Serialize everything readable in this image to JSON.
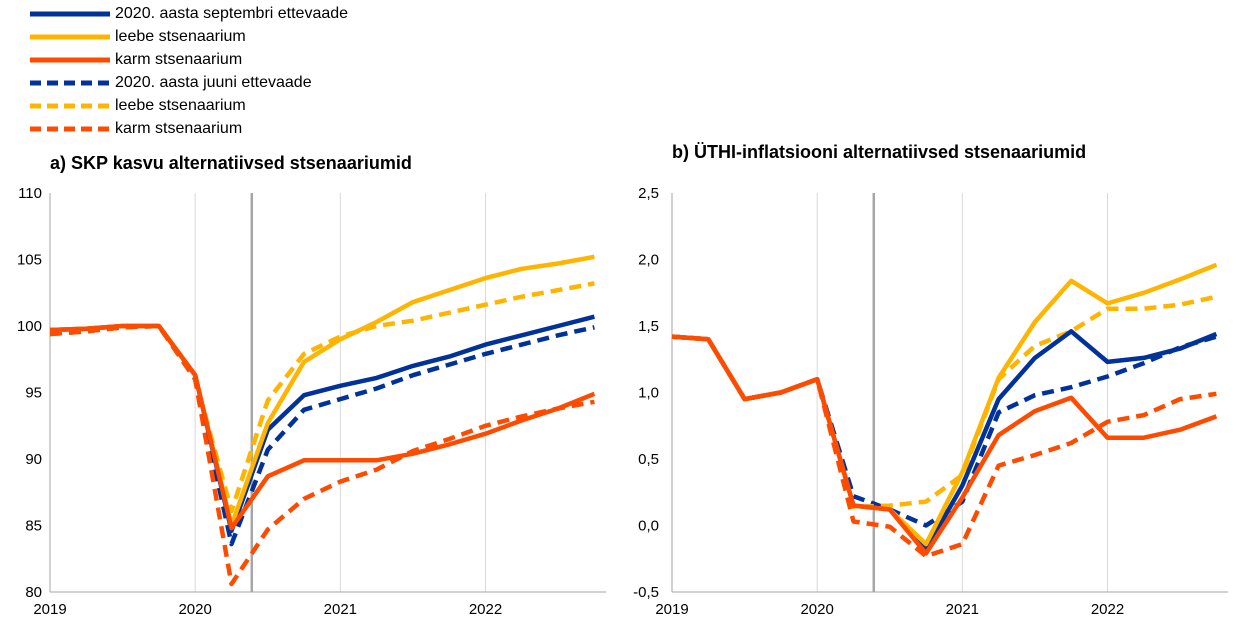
{
  "colors": {
    "sept_baseline": "#003299",
    "mild": "#FFB400",
    "severe": "#FF4B00",
    "axis": "#a6a6a6",
    "grid": "#d9d9d9",
    "marker": "#a6a6a6"
  },
  "legend": [
    {
      "label": "2020. aasta septembri ettevaade",
      "color_key": "sept_baseline",
      "dashed": false
    },
    {
      "label": "leebe stsenaarium",
      "color_key": "mild",
      "dashed": false
    },
    {
      "label": "karm stsenaarium",
      "color_key": "severe",
      "dashed": false
    },
    {
      "label": "2020. aasta juuni ettevaade",
      "color_key": "sept_baseline",
      "dashed": true
    },
    {
      "label": "leebe stsenaarium",
      "color_key": "mild",
      "dashed": true
    },
    {
      "label": "karm stsenaarium",
      "color_key": "severe",
      "dashed": true
    }
  ],
  "chart_data": [
    {
      "type": "line",
      "title": "a) SKP kasvu alternatiivsed stsenaariumid",
      "x_ticks": [
        "2019",
        "2020",
        "2021",
        "2022"
      ],
      "x_range": [
        2019,
        2022.83
      ],
      "ylim": [
        80,
        110
      ],
      "y_ticks": [
        "80",
        "85",
        "90",
        "95",
        "100",
        "105",
        "110"
      ],
      "y_tick_values": [
        80,
        85,
        90,
        95,
        100,
        105,
        110
      ],
      "vertical_marker_x": 2020.39,
      "x": [
        2019.0,
        2019.25,
        2019.5,
        2019.75,
        2020.0,
        2020.25,
        2020.5,
        2020.75,
        2021.0,
        2021.25,
        2021.5,
        2021.75,
        2022.0,
        2022.25,
        2022.5,
        2022.75
      ],
      "series": [
        {
          "name": "2020. aasta septembri ettevaade",
          "color_key": "sept_baseline",
          "dashed": false,
          "values": [
            99.7,
            99.8,
            100.0,
            100.0,
            96.3,
            84.6,
            92.2,
            94.8,
            95.5,
            96.1,
            97.0,
            97.7,
            98.6,
            99.3,
            100.0,
            100.7
          ]
        },
        {
          "name": "leebe stsenaarium",
          "color_key": "mild",
          "dashed": false,
          "values": [
            99.7,
            99.8,
            100.0,
            100.0,
            96.3,
            85.0,
            92.7,
            97.3,
            99.0,
            100.3,
            101.8,
            102.7,
            103.6,
            104.3,
            104.7,
            105.2
          ]
        },
        {
          "name": "karm stsenaarium",
          "color_key": "severe",
          "dashed": false,
          "values": [
            99.7,
            99.8,
            100.0,
            100.0,
            96.3,
            84.8,
            88.7,
            89.9,
            89.9,
            89.9,
            90.4,
            91.1,
            91.9,
            92.9,
            93.8,
            94.9
          ]
        },
        {
          "name": "2020. aasta juuni ettevaade",
          "color_key": "sept_baseline",
          "dashed": true,
          "values": [
            99.4,
            99.6,
            99.9,
            100.0,
            96.0,
            83.6,
            90.7,
            93.7,
            94.5,
            95.3,
            96.3,
            97.1,
            97.9,
            98.6,
            99.3,
            99.9
          ]
        },
        {
          "name": "leebe stsenaarium",
          "color_key": "mild",
          "dashed": true,
          "values": [
            99.4,
            99.6,
            99.9,
            100.0,
            96.0,
            86.1,
            94.4,
            97.9,
            99.2,
            100.0,
            100.4,
            101.0,
            101.6,
            102.2,
            102.7,
            103.2
          ]
        },
        {
          "name": "karm stsenaarium",
          "color_key": "severe",
          "dashed": true,
          "values": [
            99.4,
            99.6,
            99.9,
            100.0,
            96.0,
            80.6,
            84.7,
            87.0,
            88.3,
            89.2,
            90.6,
            91.5,
            92.5,
            93.2,
            93.8,
            94.3
          ]
        }
      ]
    },
    {
      "type": "line",
      "title": "b) ÜTHI-inflatsiooni alternatiivsed stsenaariumid",
      "x_ticks": [
        "2019",
        "2020",
        "2021",
        "2022"
      ],
      "x_range": [
        2019,
        2022.83
      ],
      "ylim": [
        -0.5,
        2.5
      ],
      "y_ticks": [
        "-0,5",
        "0,0",
        "0,5",
        "1,0",
        "1,5",
        "2,0",
        "2,5"
      ],
      "y_tick_values": [
        -0.5,
        0.0,
        0.5,
        1.0,
        1.5,
        2.0,
        2.5
      ],
      "vertical_marker_x": 2020.39,
      "x": [
        2019.0,
        2019.25,
        2019.5,
        2019.75,
        2020.0,
        2020.25,
        2020.5,
        2020.75,
        2021.0,
        2021.25,
        2021.5,
        2021.75,
        2022.0,
        2022.25,
        2022.5,
        2022.75
      ],
      "series": [
        {
          "name": "2020. aasta septembri ettevaade",
          "color_key": "sept_baseline",
          "dashed": false,
          "values": [
            1.42,
            1.4,
            0.95,
            1.0,
            1.1,
            0.15,
            0.12,
            -0.18,
            0.3,
            0.95,
            1.26,
            1.46,
            1.23,
            1.26,
            1.33,
            1.44
          ]
        },
        {
          "name": "leebe stsenaarium",
          "color_key": "mild",
          "dashed": false,
          "values": [
            1.42,
            1.4,
            0.95,
            1.0,
            1.1,
            0.15,
            0.12,
            -0.14,
            0.4,
            1.11,
            1.53,
            1.84,
            1.67,
            1.75,
            1.85,
            1.96
          ]
        },
        {
          "name": "karm stsenaarium",
          "color_key": "severe",
          "dashed": false,
          "values": [
            1.42,
            1.4,
            0.95,
            1.0,
            1.1,
            0.15,
            0.12,
            -0.21,
            0.21,
            0.68,
            0.86,
            0.96,
            0.66,
            0.66,
            0.72,
            0.82
          ]
        },
        {
          "name": "2020. aasta juuni ettevaade",
          "color_key": "sept_baseline",
          "dashed": true,
          "values": [
            1.42,
            1.4,
            0.95,
            1.0,
            1.1,
            0.22,
            0.12,
            0.0,
            0.18,
            0.85,
            0.98,
            1.04,
            1.12,
            1.22,
            1.34,
            1.42
          ]
        },
        {
          "name": "leebe stsenaarium",
          "color_key": "mild",
          "dashed": true,
          "values": [
            1.42,
            1.4,
            0.95,
            1.0,
            1.1,
            0.14,
            0.15,
            0.18,
            0.38,
            1.1,
            1.35,
            1.46,
            1.63,
            1.63,
            1.66,
            1.72
          ]
        },
        {
          "name": "karm stsenaarium",
          "color_key": "severe",
          "dashed": true,
          "values": [
            1.42,
            1.4,
            0.95,
            1.0,
            1.1,
            0.03,
            -0.01,
            -0.23,
            -0.14,
            0.45,
            0.53,
            0.62,
            0.78,
            0.83,
            0.95,
            0.99
          ]
        }
      ]
    }
  ]
}
